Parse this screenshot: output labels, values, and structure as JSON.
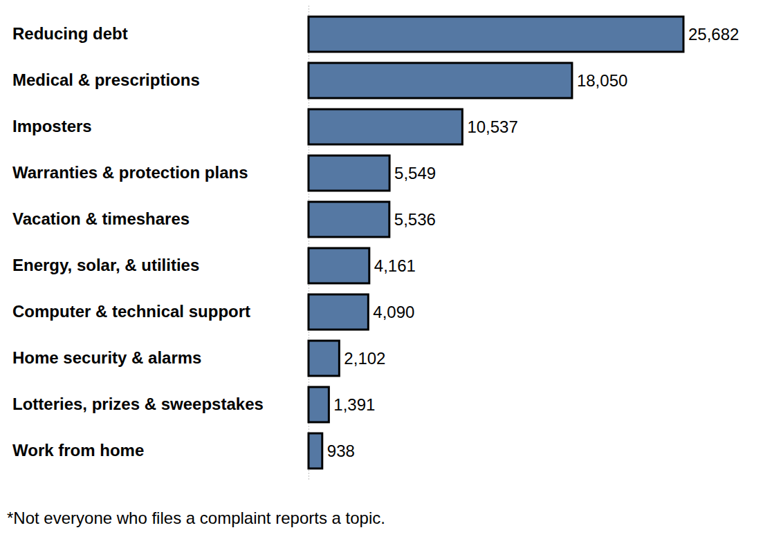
{
  "chart_data": {
    "type": "bar",
    "orientation": "horizontal",
    "categories": [
      "Reducing debt",
      "Medical & prescriptions",
      "Imposters",
      "Warranties & protection plans",
      "Vacation & timeshares",
      "Energy, solar, & utilities",
      "Computer & technical support",
      "Home security & alarms",
      "Lotteries, prizes & sweepstakes",
      "Work from home"
    ],
    "values": [
      25682,
      18050,
      10537,
      5549,
      5536,
      4161,
      4090,
      2102,
      1391,
      938
    ],
    "value_labels": [
      "25,682",
      "18,050",
      "10,537",
      "5,549",
      "5,536",
      "4,161",
      "4,090",
      "2,102",
      "1,391",
      "938"
    ],
    "color": "#5578a3",
    "xlim": [
      0,
      25682
    ],
    "data_labels": true,
    "tick_labels": "y",
    "grid": false,
    "annotations": [
      "*Not everyone who files a complaint reports a topic."
    ]
  }
}
